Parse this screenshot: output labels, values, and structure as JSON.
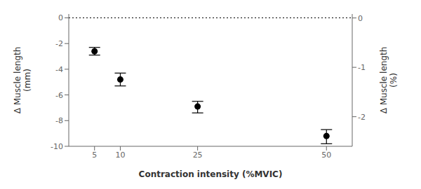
{
  "chart_data": {
    "type": "scatter",
    "x": [
      5,
      10,
      25,
      50
    ],
    "values": [
      -2.6,
      -4.8,
      -6.9,
      -9.2
    ],
    "error_lower": [
      0.3,
      0.5,
      0.5,
      0.6
    ],
    "error_upper": [
      0.3,
      0.5,
      0.4,
      0.5
    ],
    "color": "black",
    "marker": "circle",
    "xlim": [
      0,
      55
    ],
    "xticks": [
      5,
      10,
      25,
      50
    ],
    "ylim": [
      -10,
      0.3
    ],
    "yticks": [
      0,
      -2,
      -4,
      -6,
      -8,
      -10
    ],
    "y2lim": [
      -2.6,
      0.08
    ],
    "y2ticks": [
      0,
      -1,
      -2
    ],
    "xlabel": "Contraction intensity (%MVIC)",
    "ylabel": "Δ Muscle length\n(mm)",
    "y2label": "Δ Muscle length\n(%)",
    "reference_lines": [
      {
        "y": 0,
        "line_style": "dotted",
        "color": "black"
      }
    ]
  }
}
